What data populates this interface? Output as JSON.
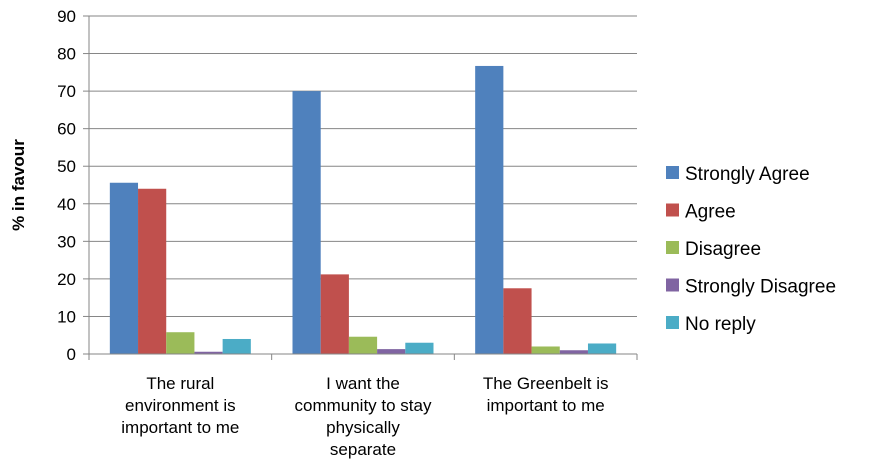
{
  "chart_data": {
    "type": "bar",
    "title": "",
    "xlabel": "",
    "ylabel": "% in favour",
    "ylim": [
      0,
      90
    ],
    "yticks": [
      0,
      10,
      20,
      30,
      40,
      50,
      60,
      70,
      80,
      90
    ],
    "grid": true,
    "legend_position": "right",
    "categories": [
      [
        "The rural",
        "environment is",
        "important to me"
      ],
      [
        "I want the",
        "community to stay",
        "physically",
        "separate"
      ],
      [
        "The Greenbelt is",
        "important to me"
      ]
    ],
    "series": [
      {
        "name": "Strongly Agree",
        "color": "#4F81BD",
        "values": [
          45.6,
          70.0,
          76.7
        ]
      },
      {
        "name": "Agree",
        "color": "#C0504D",
        "values": [
          44.0,
          21.2,
          17.5
        ]
      },
      {
        "name": "Disagree",
        "color": "#9BBB59",
        "values": [
          5.8,
          4.6,
          2.0
        ]
      },
      {
        "name": "Strongly Disagree",
        "color": "#8064A2",
        "values": [
          0.6,
          1.3,
          1.0
        ]
      },
      {
        "name": "No reply",
        "color": "#4BACC6",
        "values": [
          4.0,
          3.0,
          2.8
        ]
      }
    ]
  }
}
